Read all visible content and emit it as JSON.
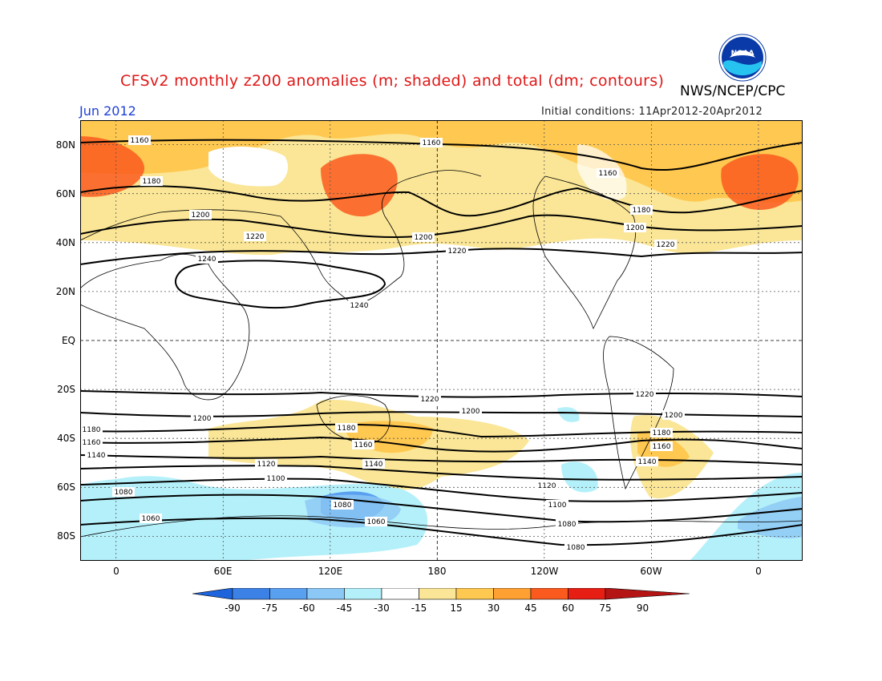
{
  "title": "CFSv2 monthly z200 anomalies (m; shaded) and total (dm; contours)",
  "agency": "NWS/NCEP/CPC",
  "logo_text": "NOAA",
  "forecast_month": "Jun 2012",
  "initial_conditions": "Initial conditions: 11Apr2012-20Apr2012",
  "lat_labels": [
    "80N",
    "60N",
    "40N",
    "20N",
    "EQ",
    "20S",
    "40S",
    "60S",
    "80S"
  ],
  "lon_labels": [
    "0",
    "60E",
    "120E",
    "180",
    "120W",
    "60W",
    "0"
  ],
  "colorbar": {
    "labels": [
      "-90",
      "-75",
      "-60",
      "-45",
      "-30",
      "-15",
      "15",
      "30",
      "45",
      "60",
      "75",
      "90"
    ],
    "colors": [
      "#1e64dc",
      "#3c82e6",
      "#5aa0f0",
      "#8cc8f5",
      "#b4f0fa",
      "#ffffff",
      "#fae696",
      "#ffc850",
      "#ffa032",
      "#fa5a1e",
      "#e61e14",
      "#b41414"
    ]
  },
  "contour_labels": [
    "1160",
    "1180",
    "1200",
    "1220",
    "1240",
    "1140",
    "1120",
    "1100",
    "1080",
    "1060"
  ],
  "icons": [
    "noaa-logo-icon"
  ]
}
